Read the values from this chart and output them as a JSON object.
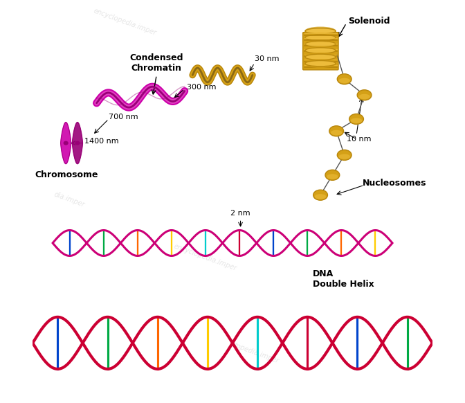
{
  "title": "",
  "labels": {
    "solenoid": "Solenoid",
    "condensed_chromatin": "Condensed\nChromatin",
    "chromosome": "Chromosome",
    "nucleosomes": "Nucleosomes",
    "dna_double_helix": "DNA\nDouble Helix",
    "30nm": "30 nm",
    "300nm": "300 nm",
    "700nm": "700 nm",
    "1400nm": "1400 nm",
    "10nm": "10 nm",
    "2nm": "2 nm"
  },
  "colors": {
    "bg_color": "#ffffff",
    "magenta": "#cc00aa",
    "dark_magenta": "#990077",
    "gold": "#d4a017",
    "dark_gold": "#b8860b",
    "gold_light": "#f0c040",
    "dna_red": "#cc0033",
    "dna_blue": "#0044cc",
    "dna_green": "#00aa44",
    "dna_orange": "#ff6600",
    "dna_yellow": "#ffcc00",
    "dna_cyan": "#00cccc",
    "backbone_magenta": "#cc0077",
    "linker_gray": "#aaaaaa",
    "watermark_color": "#cccccc"
  },
  "figsize": [
    6.72,
    5.82
  ],
  "dpi": 100
}
